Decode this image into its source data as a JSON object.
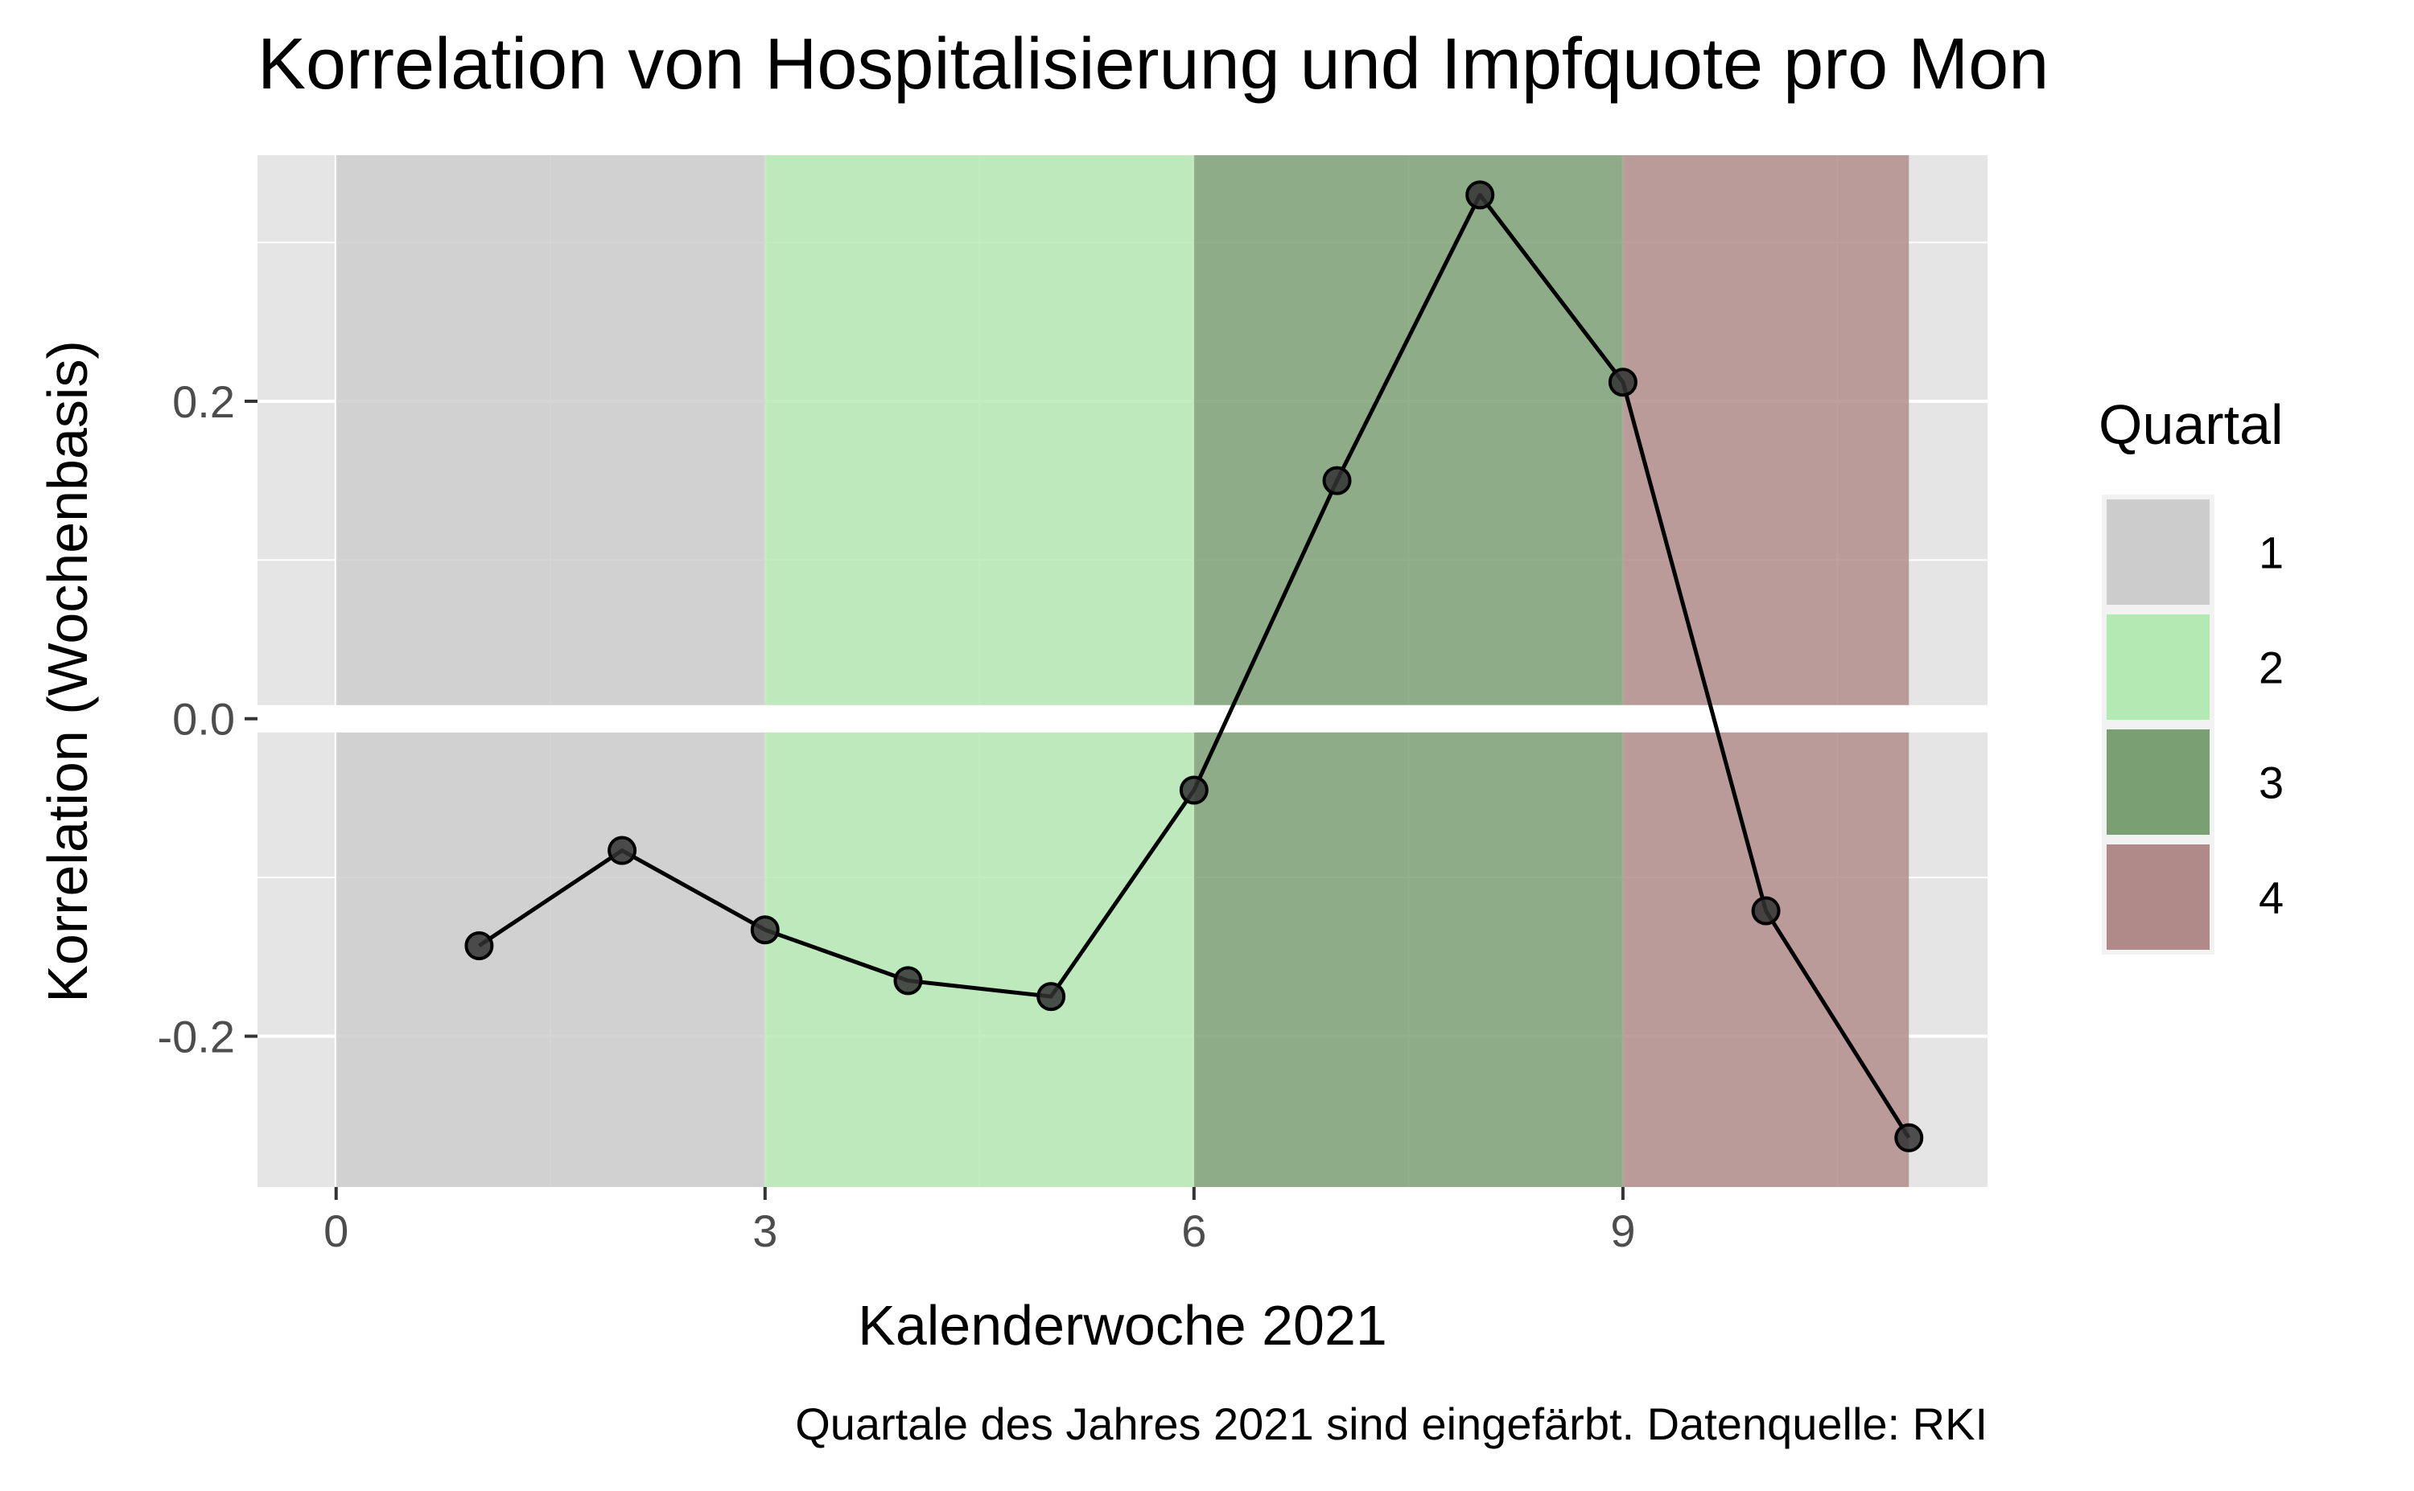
{
  "chart_data": {
    "type": "line",
    "title": "Korrelation von Hospitalisierung und Impfquote pro Mon",
    "xlabel": "Kalenderwoche 2021",
    "ylabel": "Korrelation (Wochenbasis)",
    "caption": "Quartale des Jahres 2021 sind eingefärbt. Datenquelle: RKI",
    "xlim": [
      -0.55,
      11.55
    ],
    "ylim": [
      -0.295,
      0.355
    ],
    "x_ticks": [
      0,
      3,
      6,
      9
    ],
    "x_tick_labels": [
      "0",
      "3",
      "6",
      "9"
    ],
    "y_ticks": [
      -0.2,
      0.0,
      0.2
    ],
    "y_tick_labels": [
      "-0.2",
      "0.0",
      "0.2"
    ],
    "grid": true,
    "legend": {
      "title": "Quartal",
      "position": "right",
      "entries": [
        {
          "label": "1",
          "color": "#cccccc"
        },
        {
          "label": "2",
          "color": "#b3e9b3"
        },
        {
          "label": "3",
          "color": "#7a9f73"
        },
        {
          "label": "4",
          "color": "#b08a88"
        }
      ]
    },
    "shaded_regions": [
      {
        "quartal": "1",
        "x_start": 0,
        "x_end": 3,
        "color": "#cccccc"
      },
      {
        "quartal": "2",
        "x_start": 3,
        "x_end": 6,
        "color": "#b3e9b3"
      },
      {
        "quartal": "3",
        "x_start": 6,
        "x_end": 9,
        "color": "#7a9f73"
      },
      {
        "quartal": "4",
        "x_start": 9,
        "x_end": 11,
        "color": "#b08a88"
      }
    ],
    "series": [
      {
        "color": "#000000",
        "x": [
          1,
          2,
          3,
          4,
          5,
          6,
          7,
          8,
          9,
          10,
          11
        ],
        "y": [
          -0.143,
          -0.083,
          -0.133,
          -0.165,
          -0.175,
          -0.045,
          0.15,
          0.33,
          0.212,
          -0.121,
          -0.264
        ]
      }
    ]
  }
}
